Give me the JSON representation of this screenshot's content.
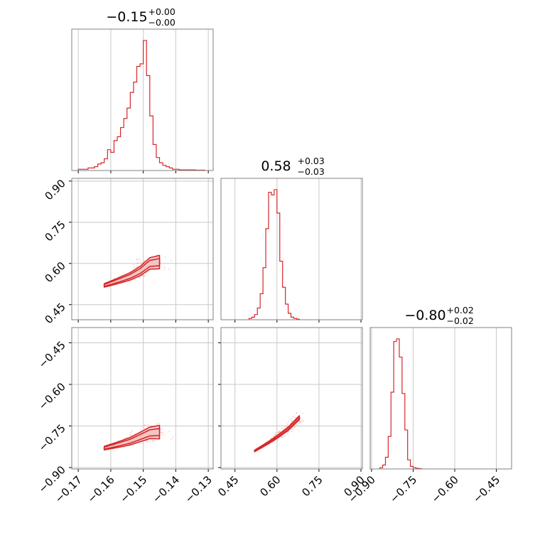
{
  "chart_data": [
    {
      "type": "histogram",
      "panel": "x-marginal",
      "param_index": 0,
      "title": {
        "median": "−0.15",
        "plus": "+0.00",
        "minus": "−0.00"
      },
      "xlim": [
        -0.172,
        -0.1285
      ],
      "xticks": [
        -0.17,
        -0.16,
        -0.15,
        -0.14,
        -0.13
      ],
      "bins": [
        {
          "x": -0.1695,
          "h": 0.01
        },
        {
          "x": -0.1685,
          "h": 0.01
        },
        {
          "x": -0.1675,
          "h": 0.01
        },
        {
          "x": -0.1665,
          "h": 0.02
        },
        {
          "x": -0.1655,
          "h": 0.02
        },
        {
          "x": -0.1645,
          "h": 0.03
        },
        {
          "x": -0.1635,
          "h": 0.05
        },
        {
          "x": -0.1625,
          "h": 0.06
        },
        {
          "x": -0.1615,
          "h": 0.09
        },
        {
          "x": -0.1605,
          "h": 0.16
        },
        {
          "x": -0.1595,
          "h": 0.14
        },
        {
          "x": -0.1585,
          "h": 0.23
        },
        {
          "x": -0.1575,
          "h": 0.26
        },
        {
          "x": -0.1565,
          "h": 0.33
        },
        {
          "x": -0.1555,
          "h": 0.4
        },
        {
          "x": -0.1545,
          "h": 0.48
        },
        {
          "x": -0.1535,
          "h": 0.6
        },
        {
          "x": -0.1525,
          "h": 0.68
        },
        {
          "x": -0.1515,
          "h": 0.8
        },
        {
          "x": -0.1505,
          "h": 0.82
        },
        {
          "x": -0.1495,
          "h": 1.0
        },
        {
          "x": -0.1485,
          "h": 0.73
        },
        {
          "x": -0.1475,
          "h": 0.42
        },
        {
          "x": -0.1465,
          "h": 0.2
        },
        {
          "x": -0.1455,
          "h": 0.1
        },
        {
          "x": -0.1445,
          "h": 0.06
        },
        {
          "x": -0.1435,
          "h": 0.04
        },
        {
          "x": -0.1425,
          "h": 0.03
        },
        {
          "x": -0.1415,
          "h": 0.02
        },
        {
          "x": -0.1405,
          "h": 0.01
        },
        {
          "x": -0.1395,
          "h": 0.01
        },
        {
          "x": -0.1385,
          "h": 0.005
        },
        {
          "x": -0.1375,
          "h": 0.005
        },
        {
          "x": -0.1365,
          "h": 0.005
        },
        {
          "x": -0.1355,
          "h": 0.005
        },
        {
          "x": -0.1345,
          "h": 0.005
        },
        {
          "x": -0.1335,
          "h": 0.003
        },
        {
          "x": -0.1325,
          "h": 0.003
        },
        {
          "x": -0.1315,
          "h": 0.003
        }
      ]
    },
    {
      "type": "histogram",
      "panel": "y-marginal",
      "param_index": 1,
      "title": {
        "median": "0.58",
        "plus": "+0.03",
        "minus": "−0.03"
      },
      "xlim": [
        0.4,
        0.905
      ],
      "xticks": [
        0.45,
        0.6,
        0.75,
        0.9
      ],
      "bins": [
        {
          "x": 0.505,
          "h": 0.01
        },
        {
          "x": 0.515,
          "h": 0.02
        },
        {
          "x": 0.525,
          "h": 0.04
        },
        {
          "x": 0.535,
          "h": 0.09
        },
        {
          "x": 0.545,
          "h": 0.2
        },
        {
          "x": 0.555,
          "h": 0.4
        },
        {
          "x": 0.565,
          "h": 0.7
        },
        {
          "x": 0.575,
          "h": 0.98
        },
        {
          "x": 0.585,
          "h": 0.96
        },
        {
          "x": 0.595,
          "h": 1.0
        },
        {
          "x": 0.605,
          "h": 0.82
        },
        {
          "x": 0.615,
          "h": 0.45
        },
        {
          "x": 0.625,
          "h": 0.25
        },
        {
          "x": 0.635,
          "h": 0.12
        },
        {
          "x": 0.645,
          "h": 0.05
        },
        {
          "x": 0.655,
          "h": 0.02
        },
        {
          "x": 0.665,
          "h": 0.01
        },
        {
          "x": 0.675,
          "h": 0.005
        }
      ]
    },
    {
      "type": "histogram",
      "panel": "z-marginal",
      "param_index": 2,
      "title": {
        "median": "−0.80",
        "plus": "+0.02",
        "minus": "−0.02"
      },
      "xlim": [
        -0.905,
        -0.395
      ],
      "xticks": [
        -0.9,
        -0.75,
        -0.6,
        -0.45
      ],
      "bins": [
        {
          "x": -0.865,
          "h": 0.01
        },
        {
          "x": -0.855,
          "h": 0.03
        },
        {
          "x": -0.845,
          "h": 0.09
        },
        {
          "x": -0.835,
          "h": 0.25
        },
        {
          "x": -0.825,
          "h": 0.59
        },
        {
          "x": -0.815,
          "h": 0.98
        },
        {
          "x": -0.805,
          "h": 1.0
        },
        {
          "x": -0.795,
          "h": 0.86
        },
        {
          "x": -0.785,
          "h": 0.58
        },
        {
          "x": -0.775,
          "h": 0.3
        },
        {
          "x": -0.765,
          "h": 0.07
        },
        {
          "x": -0.755,
          "h": 0.02
        },
        {
          "x": -0.745,
          "h": 0.01
        },
        {
          "x": -0.735,
          "h": 0.005
        },
        {
          "x": -0.725,
          "h": 0.003
        }
      ]
    },
    {
      "type": "scatter",
      "panel": "x-vs-y",
      "x_index": 0,
      "y_index": 1,
      "xlim": [
        -0.172,
        -0.1285
      ],
      "ylim": [
        0.395,
        0.91
      ],
      "xticks": [
        -0.17,
        -0.16,
        -0.15,
        -0.14,
        -0.13
      ],
      "yticks": [
        0.45,
        0.6,
        0.75,
        0.9
      ],
      "yticklabels": [
        "0.45",
        "0.60",
        "0.75",
        "0.90"
      ],
      "ridge": [
        {
          "x": -0.162,
          "y": 0.52
        },
        {
          "x": -0.158,
          "y": 0.536
        },
        {
          "x": -0.154,
          "y": 0.553
        },
        {
          "x": -0.151,
          "y": 0.572
        },
        {
          "x": -0.148,
          "y": 0.6
        },
        {
          "x": -0.145,
          "y": 0.605
        }
      ],
      "point_cloud": {
        "x_range": [
          -0.164,
          -0.136
        ],
        "y_range": [
          0.51,
          0.69
        ]
      }
    },
    {
      "type": "scatter",
      "panel": "x-vs-z",
      "x_index": 0,
      "y_index": 2,
      "xlim": [
        -0.172,
        -0.1285
      ],
      "ylim": [
        -0.905,
        -0.395
      ],
      "xticks": [
        -0.17,
        -0.16,
        -0.15,
        -0.14,
        -0.13
      ],
      "xticklabels": [
        "−0.17",
        "−0.16",
        "−0.15",
        "−0.14",
        "−0.13"
      ],
      "yticks": [
        -0.9,
        -0.75,
        -0.6,
        -0.45
      ],
      "yticklabels": [
        "−0.90",
        "−0.75",
        "−0.60",
        "−0.45"
      ],
      "ridge": [
        {
          "x": -0.162,
          "y": -0.83
        },
        {
          "x": -0.158,
          "y": -0.818
        },
        {
          "x": -0.154,
          "y": -0.805
        },
        {
          "x": -0.151,
          "y": -0.79
        },
        {
          "x": -0.148,
          "y": -0.775
        },
        {
          "x": -0.145,
          "y": -0.772
        }
      ],
      "point_cloud": {
        "x_range": [
          -0.164,
          -0.136
        ],
        "y_range": [
          -0.845,
          -0.715
        ]
      }
    },
    {
      "type": "scatter",
      "panel": "y-vs-z",
      "x_index": 1,
      "y_index": 2,
      "xlim": [
        0.4,
        0.905
      ],
      "ylim": [
        -0.905,
        -0.395
      ],
      "xticks": [
        0.45,
        0.6,
        0.75,
        0.9
      ],
      "xticklabels": [
        "0.45",
        "0.60",
        "0.75",
        "0.90"
      ],
      "yticks": [
        -0.9,
        -0.75,
        -0.6,
        -0.45
      ],
      "ridge": [
        {
          "x": 0.52,
          "y": -0.84
        },
        {
          "x": 0.57,
          "y": -0.81
        },
        {
          "x": 0.6,
          "y": -0.79
        },
        {
          "x": 0.64,
          "y": -0.76
        },
        {
          "x": 0.68,
          "y": -0.72
        }
      ],
      "point_cloud": {
        "x_range": [
          0.5,
          0.7
        ],
        "y_range": [
          -0.85,
          -0.7
        ]
      }
    },
    {
      "type": "style",
      "colors": {
        "line": "#d62728",
        "fill": "#f3c4c4",
        "points": "#eba0a0",
        "grid": "#c8c8c8",
        "frame": "#808080"
      }
    }
  ]
}
